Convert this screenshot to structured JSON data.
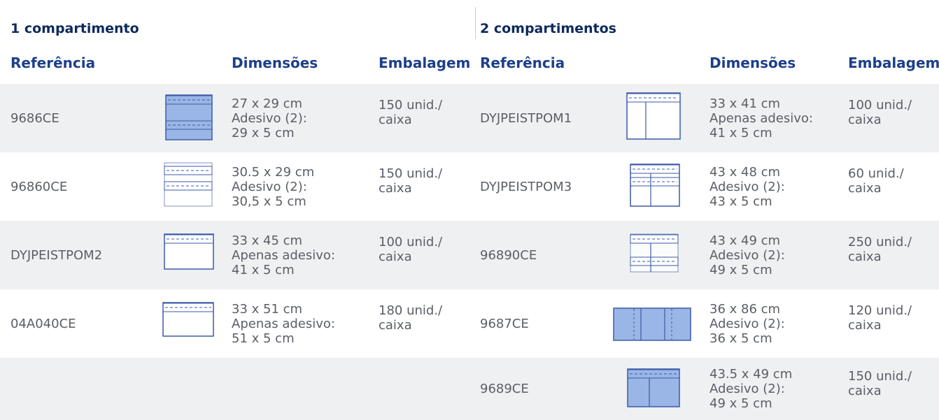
{
  "sections": [
    {
      "title": "1 compartimento",
      "headers": [
        "Referência",
        "Dimensões",
        "Embalagem"
      ],
      "rows": [
        {
          "reference": "9686CE",
          "dimensions": [
            "27 x 29 cm",
            "Adesivo (2):",
            "29 x 5 cm"
          ],
          "packaging": [
            "150 unid./",
            "caixa"
          ]
        },
        {
          "reference": "96860CE",
          "dimensions": [
            "30.5 x 29 cm",
            "Adesivo (2):",
            "30,5 x 5 cm"
          ],
          "packaging": [
            "150 unid./",
            "caixa"
          ]
        },
        {
          "reference": "DYJPEISTPOM2",
          "dimensions": [
            "33 x 45 cm",
            "Apenas adesivo:",
            "41 x 5 cm"
          ],
          "packaging": [
            "100 unid./",
            "caixa"
          ]
        },
        {
          "reference": "04A040CE",
          "dimensions": [
            "33 x 51 cm",
            "Apenas adesivo:",
            "51 x 5 cm"
          ],
          "packaging": [
            "180 unid./",
            "caixa"
          ]
        }
      ]
    },
    {
      "title": "2 compartimentos",
      "headers": [
        "Referência",
        "Dimensões",
        "Embalagem"
      ],
      "rows": [
        {
          "reference": "DYJPEISTPOM1",
          "dimensions": [
            "33 x 41 cm",
            "Apenas adesivo:",
            "41 x 5 cm"
          ],
          "packaging": [
            "100 unid./",
            "caixa"
          ]
        },
        {
          "reference": "DYJPEISTPOM3",
          "dimensions": [
            "43 x 48 cm",
            "Adesivo (2):",
            "43 x 5 cm"
          ],
          "packaging": [
            "60 unid./",
            "caixa"
          ]
        },
        {
          "reference": "96890CE",
          "dimensions": [
            "43 x 49 cm",
            "Adesivo (2):",
            "49 x 5 cm"
          ],
          "packaging": [
            "250 unid./",
            "caixa"
          ]
        },
        {
          "reference": "9687CE",
          "dimensions": [
            "36 x 86 cm",
            "Adesivo (2):",
            "36 x 5 cm"
          ],
          "packaging": [
            "120 unid./",
            "caixa"
          ]
        },
        {
          "reference": "9689CE",
          "dimensions": [
            "43.5 x 49 cm",
            "Adesivo (2):",
            "49 x 5 cm"
          ],
          "packaging": [
            "150 unid./",
            "caixa"
          ]
        }
      ]
    }
  ]
}
